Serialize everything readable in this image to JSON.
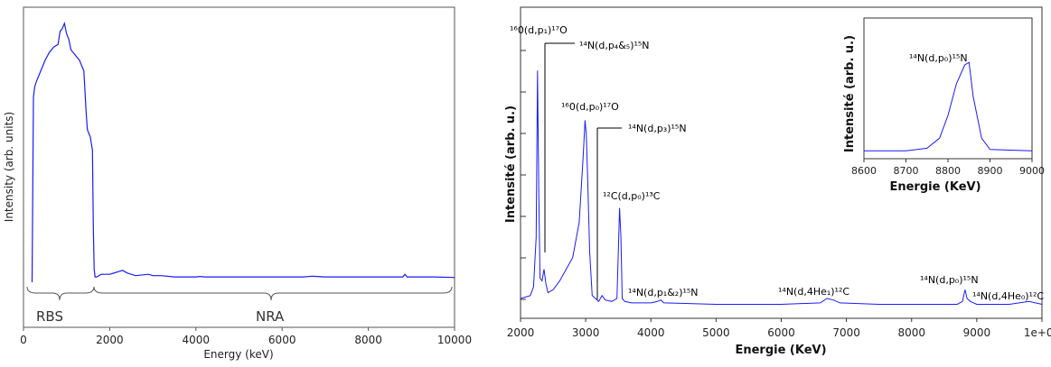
{
  "chart_data": [
    {
      "type": "line",
      "xlabel": "Energy (keV)",
      "ylabel": "Intensity (arb. units)",
      "xlim": [
        0,
        10000
      ],
      "ylim": [
        0,
        100
      ],
      "x_ticks": [
        "0",
        "2000",
        "4000",
        "6000",
        "8000",
        "10000"
      ],
      "color": "#1a1aff",
      "series": [
        {
          "x": [
            200,
            230,
            260,
            300,
            400,
            500,
            600,
            700,
            800,
            850,
            900,
            950,
            1000,
            1050,
            1100,
            1200,
            1300,
            1400,
            1450,
            1480,
            1500,
            1550,
            1600,
            1620,
            1640,
            1660,
            1700,
            1800,
            2000,
            2200,
            2300,
            2400,
            2600,
            2900,
            3000,
            3200,
            3500,
            4000,
            4100,
            4200,
            5000,
            6000,
            6500,
            6700,
            6800,
            7000,
            8000,
            8800,
            8850,
            8900,
            9000,
            9500,
            10000
          ],
          "y": [
            0,
            70,
            74,
            76,
            80,
            84,
            87,
            89,
            90,
            95,
            96,
            98,
            94,
            92,
            88,
            86,
            84,
            80,
            65,
            58,
            57,
            55,
            50,
            20,
            5,
            2,
            2,
            3,
            3,
            4,
            4.5,
            3.5,
            2.5,
            3,
            2.5,
            2.5,
            2,
            2,
            2.2,
            2,
            2,
            2,
            2,
            2.3,
            2.2,
            2,
            2,
            2,
            3,
            2,
            2,
            2,
            1.8
          ]
        }
      ],
      "annotations": [
        "RBS",
        "NRA"
      ]
    },
    {
      "type": "line",
      "xlabel": "Energie (KeV)",
      "ylabel": "Intensité (arb. u.)",
      "xlim": [
        2000,
        10000
      ],
      "ylim": [
        0,
        100
      ],
      "x_ticks": [
        "2000",
        "3000",
        "4000",
        "5000",
        "6000",
        "7000",
        "8000",
        "9000",
        "1e+04"
      ],
      "color": "#1a1aff",
      "series": [
        {
          "x": [
            2000,
            2150,
            2200,
            2240,
            2260,
            2280,
            2300,
            2330,
            2360,
            2390,
            2420,
            2500,
            2600,
            2700,
            2800,
            2900,
            2960,
            2990,
            3010,
            3030,
            3060,
            3100,
            3150,
            3200,
            3250,
            3300,
            3400,
            3480,
            3500,
            3520,
            3540,
            3560,
            3600,
            3700,
            4000,
            4100,
            4150,
            4200,
            5000,
            6000,
            6600,
            6700,
            6800,
            6900,
            7500,
            8000,
            8700,
            8780,
            8820,
            8850,
            8900,
            9000,
            9500,
            9800,
            9900,
            10000
          ],
          "y": [
            4,
            5,
            8,
            25,
            82,
            40,
            11,
            10,
            14,
            9,
            6,
            7,
            10,
            14,
            18,
            30,
            52,
            65,
            60,
            45,
            20,
            5,
            4,
            3,
            5,
            3.5,
            3,
            4,
            20,
            35,
            25,
            4,
            3,
            2.5,
            2.5,
            3,
            3.5,
            2.5,
            2,
            2,
            2.5,
            4,
            3.5,
            2.5,
            2,
            2,
            2,
            3,
            7,
            4,
            3,
            2,
            2,
            3,
            2.5,
            2
          ]
        }
      ],
      "annotations": [
        {
          "label": "¹⁶0(d,p₁)¹⁷O"
        },
        {
          "label": "¹⁴N(d,p₄&₅)¹⁵N"
        },
        {
          "label": "¹⁶0(d,p₀)¹⁷O"
        },
        {
          "label": "¹⁴N(d,p₃)¹⁵N"
        },
        {
          "label": "¹²C(d,p₀)¹³C"
        },
        {
          "label": "¹⁴N(d,p₁&₂)¹⁵N"
        },
        {
          "label": "¹⁴N(d,4He₁)¹²C"
        },
        {
          "label": "¹⁴N(d,p₀)¹⁵N"
        },
        {
          "label": "¹⁴N(d,4He₀)¹²C"
        }
      ],
      "inset": {
        "xlabel": "Energie (KeV)",
        "ylabel": "Intensité (arb. u.)",
        "title": "¹⁴N(d,p₀)¹⁵N",
        "xlim": [
          8600,
          9000
        ],
        "x_ticks": [
          "8600",
          "8700",
          "8800",
          "8900",
          "9000"
        ],
        "x": [
          8600,
          8700,
          8750,
          8780,
          8800,
          8820,
          8840,
          8850,
          8860,
          8880,
          8900,
          9000
        ],
        "y": [
          2,
          2,
          4,
          12,
          30,
          55,
          70,
          72,
          45,
          12,
          3,
          2
        ]
      }
    }
  ]
}
